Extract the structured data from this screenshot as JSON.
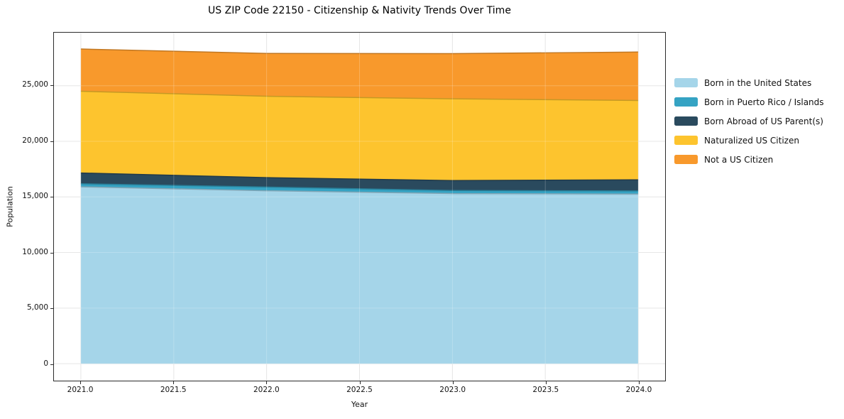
{
  "chart_data": {
    "type": "area",
    "stacked": true,
    "title": "US ZIP Code 22150 - Citizenship & Nativity Trends Over Time",
    "xlabel": "Year",
    "ylabel": "Population",
    "x": [
      2021.0,
      2022.0,
      2023.0,
      2024.0
    ],
    "series": [
      {
        "name": "Born in the United States",
        "color": "#a5d5e9",
        "values": [
          15900,
          15550,
          15300,
          15250
        ]
      },
      {
        "name": "Born in Puerto Rico / Islands",
        "color": "#35a3c3",
        "values": [
          280,
          330,
          270,
          280
        ]
      },
      {
        "name": "Born Abroad of US Parent(s)",
        "color": "#2a4a5e",
        "values": [
          970,
          850,
          900,
          1000
        ]
      },
      {
        "name": "Naturalized US Citizen",
        "color": "#fdc42e",
        "values": [
          7350,
          7320,
          7350,
          7140
        ]
      },
      {
        "name": "Not a US Citizen",
        "color": "#f8992c",
        "values": [
          3800,
          3850,
          4070,
          4360
        ]
      }
    ],
    "totals": [
      28300,
      27900,
      27890,
      28030
    ],
    "axes": {
      "x_tick_labels": [
        "2021.0",
        "2021.5",
        "2022.0",
        "2022.5",
        "2023.0",
        "2023.5",
        "2024.0"
      ],
      "x_tick_values": [
        2021.0,
        2021.5,
        2022.0,
        2022.5,
        2023.0,
        2023.5,
        2024.0
      ],
      "y_tick_labels": [
        "0",
        "5,000",
        "10,000",
        "15,000",
        "20,000",
        "25,000"
      ],
      "y_tick_values": [
        0,
        5000,
        10000,
        15000,
        20000,
        25000
      ],
      "xlim": [
        2020.855,
        2024.145
      ],
      "ylim": [
        -1530,
        29770
      ],
      "grid": true
    },
    "legend_position": "right-outside",
    "style": {
      "grid_color": "#e0e0e0",
      "spine_color": "#2b2b2b",
      "background": "#ffffff"
    }
  }
}
